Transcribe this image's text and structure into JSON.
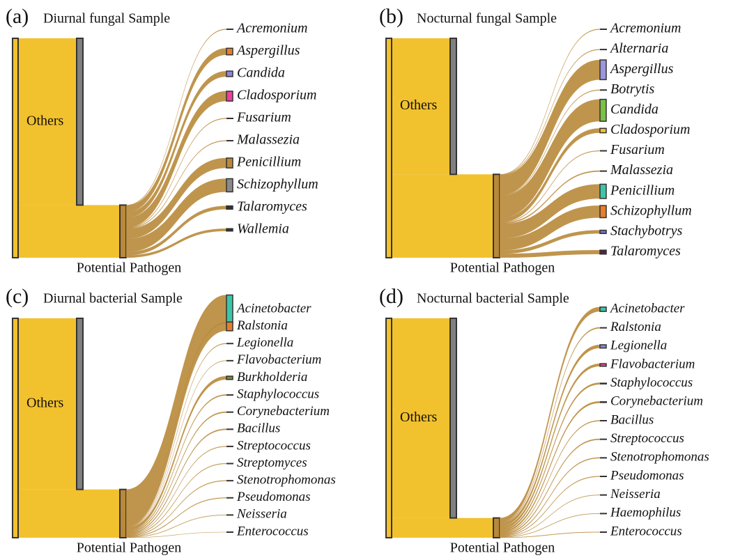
{
  "chart_data": [
    {
      "type": "sankey",
      "panel": "(a)",
      "title": "Diurnal fungal Sample",
      "source_labels": [
        "Others",
        "Potential Pathogen"
      ],
      "source_values": [
        76,
        24
      ],
      "categories": [
        "Acremonium",
        "Aspergillus",
        "Candida",
        "Cladosporium",
        "Fusarium",
        "Malassezia",
        "Penicillium",
        "Schizophyllum",
        "Talaromyces",
        "Wallemia"
      ],
      "values": [
        0.3,
        3,
        2.5,
        4.5,
        0.3,
        0.3,
        4.5,
        6,
        1.5,
        1.1
      ],
      "colors": [
        "#333333",
        "#e87d2a",
        "#8c86d6",
        "#ee3f9a",
        "#333333",
        "#333333",
        "#b8893a",
        "#8a8a8a",
        "#333333",
        "#333333"
      ]
    },
    {
      "type": "sankey",
      "panel": "(b)",
      "title": "Nocturnal fungal Sample",
      "source_labels": [
        "Others",
        "Potential Pathogen"
      ],
      "source_values": [
        62,
        38
      ],
      "categories": [
        "Acremonium",
        "Alternaria",
        "Aspergillus",
        "Botrytis",
        "Candida",
        "Cladosporium",
        "Fusarium",
        "Malassezia",
        "Penicillium",
        "Schizophyllum",
        "Stachybotrys",
        "Talaromyces"
      ],
      "values": [
        0.3,
        0.3,
        9,
        0.3,
        10,
        2,
        0.3,
        0.5,
        6.5,
        5.5,
        1.5,
        1.8
      ],
      "colors": [
        "#333333",
        "#333333",
        "#9a96e0",
        "#333333",
        "#7ac143",
        "#f2c12e",
        "#333333",
        "#333333",
        "#3cc6a8",
        "#e87d2a",
        "#7070d0",
        "#552244"
      ]
    },
    {
      "type": "sankey",
      "panel": "(c)",
      "title": "Diurnal bacterial Sample",
      "source_labels": [
        "Others",
        "Potential Pathogen"
      ],
      "source_values": [
        78,
        22
      ],
      "categories": [
        "Acinetobacter",
        "Ralstonia",
        "Legionella",
        "Flavobacterium",
        "Burkholderia",
        "Staphylococcus",
        "Corynebacterium",
        "Bacillus",
        "Streptococcus",
        "Streptomyces",
        "Stenotrophomonas",
        "Pseudomonas",
        "Neisseria",
        "Enterococcus"
      ],
      "values": [
        13,
        4,
        0.3,
        0.2,
        1.5,
        0.5,
        0.5,
        0.5,
        0.3,
        0.3,
        0.3,
        0.3,
        0.2,
        0.1
      ],
      "colors": [
        "#3cc6a8",
        "#e87d2a",
        "#333333",
        "#333333",
        "#7a8a3a",
        "#333333",
        "#333333",
        "#333333",
        "#333333",
        "#333333",
        "#333333",
        "#333333",
        "#333333",
        "#333333"
      ]
    },
    {
      "type": "sankey",
      "panel": "(d)",
      "title": "Nocturnal bacterial Sample",
      "source_labels": [
        "Others",
        "Potential Pathogen"
      ],
      "source_values": [
        91,
        9
      ],
      "categories": [
        "Acinetobacter",
        "Ralstonia",
        "Legionella",
        "Flavobacterium",
        "Staphylococcus",
        "Corynebacterium",
        "Bacillus",
        "Streptococcus",
        "Stenotrophomonas",
        "Pseudomonas",
        "Neisseria",
        "Haemophilus",
        "Enterococcus"
      ],
      "values": [
        2,
        0.5,
        1.5,
        1.2,
        0.8,
        0.8,
        0.4,
        0.5,
        0.4,
        0.3,
        0.2,
        0.2,
        0.2
      ],
      "colors": [
        "#3cc6a8",
        "#333333",
        "#8c86d6",
        "#ee3f9a",
        "#333333",
        "#333333",
        "#333333",
        "#333333",
        "#333333",
        "#333333",
        "#333333",
        "#333333",
        "#333333"
      ]
    }
  ]
}
